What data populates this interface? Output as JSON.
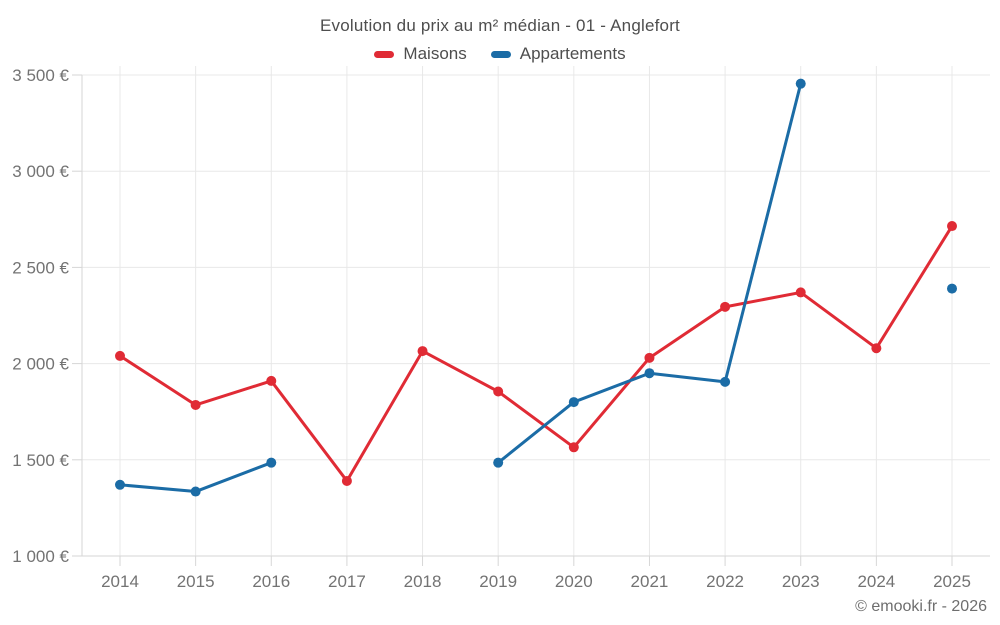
{
  "page": {
    "copyright": "© emooki.fr - 2026"
  },
  "chart_data": {
    "type": "line",
    "title": "Evolution du prix au m² médian - 01 - Anglefort",
    "categories": [
      "2014",
      "2015",
      "2016",
      "2017",
      "2018",
      "2019",
      "2020",
      "2021",
      "2022",
      "2023",
      "2024",
      "2025"
    ],
    "series": [
      {
        "name": "Maisons",
        "color": "#e02b35",
        "values": [
          2040,
          1785,
          1910,
          1390,
          2065,
          1855,
          1565,
          2030,
          2295,
          2370,
          2080,
          2715
        ]
      },
      {
        "name": "Appartements",
        "color": "#1b6ca6",
        "values": [
          1370,
          1335,
          1485,
          null,
          null,
          1485,
          1800,
          1950,
          1905,
          3455,
          null,
          2390
        ]
      }
    ],
    "xlabel": "",
    "ylabel": "",
    "ylim": [
      1000,
      3500
    ],
    "yticks": [
      1000,
      1500,
      2000,
      2500,
      3000,
      3500
    ],
    "ytick_labels": [
      "1 000 €",
      "1 500 €",
      "2 000 €",
      "2 500 €",
      "3 000 €",
      "3 500 €"
    ],
    "grid": true,
    "legend_position": "top",
    "grid_color": "#e8e8e8",
    "axis_color": "#d6d6d6",
    "marker_radius": 5,
    "line_width": 3
  }
}
